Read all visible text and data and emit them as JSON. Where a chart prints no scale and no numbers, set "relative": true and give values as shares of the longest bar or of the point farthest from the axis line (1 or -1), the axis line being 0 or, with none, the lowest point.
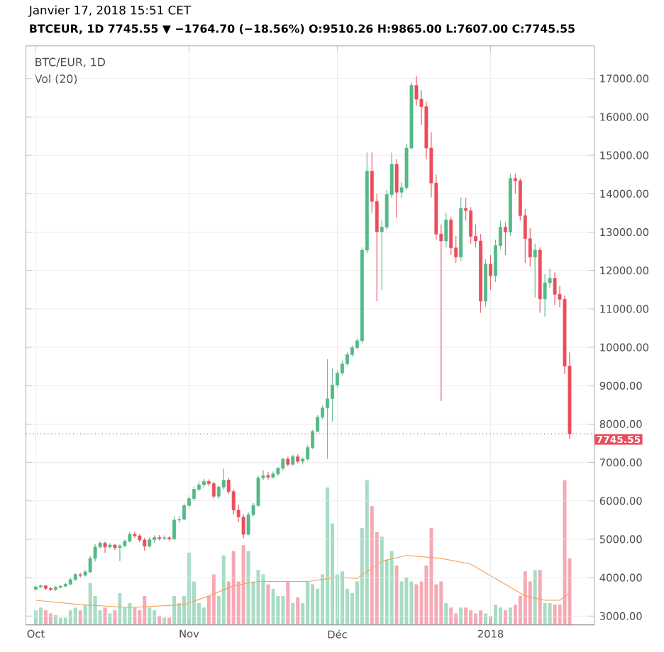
{
  "chart_data": [
    {
      "type": "candlestick",
      "title": "Janvier 17, 2018 15:51 CET",
      "subtitle": "BTCEUR, 1D 7745.55 ▼ −1764.70 (−18.56%) O:9510.26 H:9865.00 L:7607.00 C:7745.55",
      "annotations": [
        "BTC/EUR, 1D"
      ],
      "x": [
        "2017-10-01",
        "2017-10-02",
        "2017-10-03",
        "2017-10-04",
        "2017-10-05",
        "2017-10-06",
        "2017-10-07",
        "2017-10-08",
        "2017-10-09",
        "2017-10-10",
        "2017-10-11",
        "2017-10-12",
        "2017-10-13",
        "2017-10-14",
        "2017-10-15",
        "2017-10-16",
        "2017-10-17",
        "2017-10-18",
        "2017-10-19",
        "2017-10-20",
        "2017-10-21",
        "2017-10-22",
        "2017-10-23",
        "2017-10-24",
        "2017-10-25",
        "2017-10-26",
        "2017-10-27",
        "2017-10-28",
        "2017-10-29",
        "2017-10-30",
        "2017-10-31",
        "2017-11-01",
        "2017-11-02",
        "2017-11-03",
        "2017-11-04",
        "2017-11-05",
        "2017-11-06",
        "2017-11-07",
        "2017-11-08",
        "2017-11-09",
        "2017-11-10",
        "2017-11-11",
        "2017-11-12",
        "2017-11-13",
        "2017-11-14",
        "2017-11-15",
        "2017-11-16",
        "2017-11-17",
        "2017-11-18",
        "2017-11-19",
        "2017-11-20",
        "2017-11-21",
        "2017-11-22",
        "2017-11-23",
        "2017-11-24",
        "2017-11-25",
        "2017-11-26",
        "2017-11-27",
        "2017-11-28",
        "2017-11-29",
        "2017-11-30",
        "2017-12-01",
        "2017-12-02",
        "2017-12-03",
        "2017-12-04",
        "2017-12-05",
        "2017-12-06",
        "2017-12-07",
        "2017-12-08",
        "2017-12-09",
        "2017-12-10",
        "2017-12-11",
        "2017-12-12",
        "2017-12-13",
        "2017-12-14",
        "2017-12-15",
        "2017-12-16",
        "2017-12-17",
        "2017-12-18",
        "2017-12-19",
        "2017-12-20",
        "2017-12-21",
        "2017-12-22",
        "2017-12-23",
        "2017-12-24",
        "2017-12-25",
        "2017-12-26",
        "2017-12-27",
        "2017-12-28",
        "2017-12-29",
        "2017-12-30",
        "2017-12-31",
        "2018-01-01",
        "2018-01-02",
        "2018-01-03",
        "2018-01-04",
        "2018-01-05",
        "2018-01-06",
        "2018-01-07",
        "2018-01-08",
        "2018-01-09",
        "2018-01-10",
        "2018-01-11",
        "2018-01-12",
        "2018-01-13",
        "2018-01-14",
        "2018-01-15",
        "2018-01-16",
        "2018-01-17"
      ],
      "ohlc": [
        [
          3700,
          3790,
          3650,
          3760
        ],
        [
          3760,
          3820,
          3720,
          3790
        ],
        [
          3790,
          3810,
          3680,
          3720
        ],
        [
          3720,
          3760,
          3650,
          3690
        ],
        [
          3690,
          3780,
          3660,
          3750
        ],
        [
          3750,
          3800,
          3720,
          3780
        ],
        [
          3780,
          3860,
          3750,
          3830
        ],
        [
          3830,
          3990,
          3800,
          3950
        ],
        [
          3950,
          4120,
          3920,
          4080
        ],
        [
          4080,
          4130,
          4010,
          4060
        ],
        [
          4060,
          4200,
          4030,
          4150
        ],
        [
          4150,
          4560,
          4120,
          4500
        ],
        [
          4500,
          4870,
          4420,
          4800
        ],
        [
          4800,
          4950,
          4760,
          4900
        ],
        [
          4900,
          4940,
          4650,
          4800
        ],
        [
          4800,
          4900,
          4760,
          4850
        ],
        [
          4850,
          4880,
          4720,
          4780
        ],
        [
          4780,
          4870,
          4430,
          4830
        ],
        [
          4830,
          4990,
          4800,
          4950
        ],
        [
          4950,
          5180,
          4920,
          5130
        ],
        [
          5130,
          5200,
          5040,
          5090
        ],
        [
          5090,
          5130,
          4930,
          4980
        ],
        [
          4980,
          5040,
          4700,
          4820
        ],
        [
          4820,
          5050,
          4780,
          4990
        ],
        [
          4990,
          5100,
          4900,
          5050
        ],
        [
          5050,
          5110,
          4970,
          5020
        ],
        [
          5020,
          5100,
          4990,
          5040
        ],
        [
          5040,
          5080,
          4950,
          5010
        ],
        [
          5010,
          5600,
          4990,
          5500
        ],
        [
          5500,
          5600,
          5430,
          5520
        ],
        [
          5520,
          5930,
          5500,
          5880
        ],
        [
          5880,
          6150,
          5800,
          6060
        ],
        [
          6060,
          6380,
          6000,
          6300
        ],
        [
          6300,
          6520,
          6250,
          6420
        ],
        [
          6420,
          6580,
          6350,
          6510
        ],
        [
          6510,
          6560,
          6380,
          6450
        ],
        [
          6450,
          6500,
          6060,
          6120
        ],
        [
          6120,
          6400,
          6050,
          6360
        ],
        [
          6360,
          6840,
          6300,
          6540
        ],
        [
          6540,
          6600,
          6180,
          6240
        ],
        [
          6240,
          6300,
          5650,
          5760
        ],
        [
          5760,
          5900,
          5450,
          5580
        ],
        [
          5580,
          5650,
          5030,
          5130
        ],
        [
          5130,
          5700,
          5100,
          5640
        ],
        [
          5640,
          5950,
          5600,
          5880
        ],
        [
          5880,
          6650,
          5850,
          6600
        ],
        [
          6600,
          6800,
          6550,
          6660
        ],
        [
          6660,
          6750,
          6560,
          6620
        ],
        [
          6620,
          6760,
          6580,
          6700
        ],
        [
          6700,
          6880,
          6650,
          6850
        ],
        [
          6850,
          7120,
          6800,
          7090
        ],
        [
          7090,
          7150,
          6900,
          6950
        ],
        [
          6950,
          7200,
          6920,
          7150
        ],
        [
          7150,
          7220,
          6980,
          7030
        ],
        [
          7030,
          7130,
          6950,
          7090
        ],
        [
          7090,
          7450,
          7050,
          7390
        ],
        [
          7390,
          7850,
          7350,
          7810
        ],
        [
          7810,
          8230,
          7780,
          8180
        ],
        [
          8180,
          8480,
          8130,
          8420
        ],
        [
          8420,
          9690,
          7090,
          8660
        ],
        [
          8660,
          9450,
          8060,
          9020
        ],
        [
          9020,
          9400,
          8950,
          9330
        ],
        [
          9330,
          9650,
          9280,
          9570
        ],
        [
          9570,
          9880,
          9520,
          9810
        ],
        [
          9810,
          10050,
          9750,
          9990
        ],
        [
          9990,
          10230,
          9940,
          10170
        ],
        [
          10170,
          12600,
          10100,
          12530
        ],
        [
          12530,
          15070,
          12450,
          14590
        ],
        [
          14590,
          15070,
          13500,
          13800
        ],
        [
          13800,
          14000,
          11200,
          13010
        ],
        [
          13010,
          13300,
          11500,
          13130
        ],
        [
          13130,
          14100,
          13050,
          13980
        ],
        [
          13980,
          15070,
          13900,
          14770
        ],
        [
          14770,
          14900,
          13370,
          14040
        ],
        [
          14040,
          14300,
          13900,
          14160
        ],
        [
          14160,
          15300,
          14100,
          15190
        ],
        [
          15190,
          16900,
          15150,
          16820
        ],
        [
          16820,
          17060,
          16300,
          16460
        ],
        [
          16460,
          16700,
          15800,
          16270
        ],
        [
          16270,
          16400,
          14900,
          15190
        ],
        [
          15190,
          15600,
          13900,
          14280
        ],
        [
          14280,
          14500,
          12800,
          12950
        ],
        [
          12950,
          13200,
          8600,
          12770
        ],
        [
          12770,
          13500,
          12600,
          13320
        ],
        [
          13320,
          13400,
          12400,
          12590
        ],
        [
          12590,
          12900,
          12200,
          12350
        ],
        [
          12350,
          13900,
          12250,
          13620
        ],
        [
          13620,
          13900,
          13300,
          13560
        ],
        [
          13560,
          13650,
          12700,
          12890
        ],
        [
          12890,
          13200,
          12600,
          12770
        ],
        [
          12770,
          12950,
          10900,
          11200
        ],
        [
          11200,
          12300,
          11050,
          12170
        ],
        [
          12170,
          12400,
          11500,
          11860
        ],
        [
          11860,
          12800,
          11700,
          12650
        ],
        [
          12650,
          13300,
          12550,
          13130
        ],
        [
          13130,
          13250,
          12400,
          13010
        ],
        [
          13010,
          14520,
          12900,
          14400
        ],
        [
          14400,
          14520,
          14000,
          14340
        ],
        [
          14340,
          14400,
          13300,
          13430
        ],
        [
          13430,
          13600,
          12200,
          12830
        ],
        [
          12830,
          13100,
          12100,
          12350
        ],
        [
          12350,
          12700,
          11300,
          12530
        ],
        [
          12530,
          12600,
          10900,
          11260
        ],
        [
          11260,
          11900,
          10800,
          11680
        ],
        [
          11680,
          12050,
          11550,
          11800
        ],
        [
          11800,
          11950,
          11100,
          11380
        ],
        [
          11380,
          11600,
          11050,
          11250
        ],
        [
          11250,
          11350,
          9300,
          9510
        ],
        [
          9510.26,
          9865,
          7607,
          7745.55
        ]
      ],
      "colors": [
        "#53b987",
        "#53b987",
        "#eb4d5c",
        "#eb4d5c",
        "#53b987",
        "#53b987",
        "#53b987",
        "#53b987",
        "#53b987",
        "#eb4d5c",
        "#53b987",
        "#53b987",
        "#53b987",
        "#53b987",
        "#eb4d5c",
        "#53b987",
        "#eb4d5c",
        "#53b987",
        "#53b987",
        "#53b987",
        "#eb4d5c",
        "#eb4d5c",
        "#eb4d5c",
        "#53b987",
        "#53b987",
        "#eb4d5c",
        "#53b987",
        "#eb4d5c",
        "#53b987",
        "#53b987",
        "#53b987",
        "#53b987",
        "#53b987",
        "#53b987",
        "#53b987",
        "#eb4d5c",
        "#eb4d5c",
        "#53b987",
        "#53b987",
        "#eb4d5c",
        "#eb4d5c",
        "#eb4d5c",
        "#eb4d5c",
        "#53b987",
        "#53b987",
        "#53b987",
        "#53b987",
        "#eb4d5c",
        "#53b987",
        "#53b987",
        "#53b987",
        "#eb4d5c",
        "#53b987",
        "#eb4d5c",
        "#53b987",
        "#53b987",
        "#53b987",
        "#53b987",
        "#53b987",
        "#53b987",
        "#53b987",
        "#53b987",
        "#53b987",
        "#53b987",
        "#53b987",
        "#53b987",
        "#53b987",
        "#53b987",
        "#eb4d5c",
        "#eb4d5c",
        "#53b987",
        "#53b987",
        "#53b987",
        "#eb4d5c",
        "#53b987",
        "#53b987",
        "#53b987",
        "#eb4d5c",
        "#eb4d5c",
        "#eb4d5c",
        "#eb4d5c",
        "#eb4d5c",
        "#eb4d5c",
        "#53b987",
        "#eb4d5c",
        "#eb4d5c",
        "#53b987",
        "#eb4d5c",
        "#eb4d5c",
        "#eb4d5c",
        "#eb4d5c",
        "#53b987",
        "#eb4d5c",
        "#53b987",
        "#53b987",
        "#eb4d5c",
        "#53b987",
        "#eb4d5c",
        "#eb4d5c",
        "#eb4d5c",
        "#eb4d5c",
        "#53b987",
        "#eb4d5c",
        "#53b987",
        "#53b987",
        "#eb4d5c",
        "#eb4d5c",
        "#eb4d5c",
        "#eb4d5c"
      ],
      "xlim": [
        "2017-09-29",
        "2018-01-22"
      ],
      "ylim": [
        2770,
        17850
      ],
      "xticks": [
        {
          "value": "2017-10-01",
          "label": "Oct"
        },
        {
          "value": "2017-11-01",
          "label": "Nov"
        },
        {
          "value": "2017-12-01",
          "label": "Déc"
        },
        {
          "value": "2018-01-01",
          "label": "2018"
        }
      ],
      "yticks": [
        {
          "value": 3000,
          "label": "3000.00"
        },
        {
          "value": 4000,
          "label": "4000.00"
        },
        {
          "value": 5000,
          "label": "5000.00"
        },
        {
          "value": 6000,
          "label": "6000.00"
        },
        {
          "value": 7000,
          "label": "7000.00"
        },
        {
          "value": 8000,
          "label": "8000.00"
        },
        {
          "value": 9000,
          "label": "9000.00"
        },
        {
          "value": 10000,
          "label": "10000.00"
        },
        {
          "value": 11000,
          "label": "11000.00"
        },
        {
          "value": 12000,
          "label": "12000.00"
        },
        {
          "value": 13000,
          "label": "13000.00"
        },
        {
          "value": 14000,
          "label": "14000.00"
        },
        {
          "value": 15000,
          "label": "15000.00"
        },
        {
          "value": 16000,
          "label": "16000.00"
        },
        {
          "value": 17000,
          "label": "17000.00"
        }
      ],
      "grid": true,
      "ref_lines": [
        {
          "axis": "y",
          "value": 7745.55,
          "label": "7745.55",
          "color": "#eb4d5c",
          "line_style": "dotted"
        }
      ]
    },
    {
      "type": "bar",
      "relative": true,
      "annotations": [
        "Vol (20)"
      ],
      "xlim": [
        "2017-09-29",
        "2018-01-22"
      ],
      "x": [
        "2017-10-01",
        "2017-10-02",
        "2017-10-03",
        "2017-10-04",
        "2017-10-05",
        "2017-10-06",
        "2017-10-07",
        "2017-10-08",
        "2017-10-09",
        "2017-10-10",
        "2017-10-11",
        "2017-10-12",
        "2017-10-13",
        "2017-10-14",
        "2017-10-15",
        "2017-10-16",
        "2017-10-17",
        "2017-10-18",
        "2017-10-19",
        "2017-10-20",
        "2017-10-21",
        "2017-10-22",
        "2017-10-23",
        "2017-10-24",
        "2017-10-25",
        "2017-10-26",
        "2017-10-27",
        "2017-10-28",
        "2017-10-29",
        "2017-10-30",
        "2017-10-31",
        "2017-11-01",
        "2017-11-02",
        "2017-11-03",
        "2017-11-04",
        "2017-11-05",
        "2017-11-06",
        "2017-11-07",
        "2017-11-08",
        "2017-11-09",
        "2017-11-10",
        "2017-11-11",
        "2017-11-12",
        "2017-11-13",
        "2017-11-14",
        "2017-11-15",
        "2017-11-16",
        "2017-11-17",
        "2017-11-18",
        "2017-11-19",
        "2017-11-20",
        "2017-11-21",
        "2017-11-22",
        "2017-11-23",
        "2017-11-24",
        "2017-11-25",
        "2017-11-26",
        "2017-11-27",
        "2017-11-28",
        "2017-11-29",
        "2017-11-30",
        "2017-12-01",
        "2017-12-02",
        "2017-12-03",
        "2017-12-04",
        "2017-12-05",
        "2017-12-06",
        "2017-12-07",
        "2017-12-08",
        "2017-12-09",
        "2017-12-10",
        "2017-12-11",
        "2017-12-12",
        "2017-12-13",
        "2017-12-14",
        "2017-12-15",
        "2017-12-16",
        "2017-12-17",
        "2017-12-18",
        "2017-12-19",
        "2017-12-20",
        "2017-12-21",
        "2017-12-22",
        "2017-12-23",
        "2017-12-24",
        "2017-12-25",
        "2017-12-26",
        "2017-12-27",
        "2017-12-28",
        "2017-12-29",
        "2017-12-30",
        "2017-12-31",
        "2018-01-01",
        "2018-01-02",
        "2018-01-03",
        "2018-01-04",
        "2018-01-05",
        "2018-01-06",
        "2018-01-07",
        "2018-01-08",
        "2018-01-09",
        "2018-01-10",
        "2018-01-11",
        "2018-01-12",
        "2018-01-13",
        "2018-01-14",
        "2018-01-15",
        "2018-01-16",
        "2018-01-17"
      ],
      "series": [
        {
          "type": "bar",
          "values": [
            0.1,
            0.12,
            0.1,
            0.08,
            0.07,
            0.05,
            0.05,
            0.1,
            0.12,
            0.1,
            0.14,
            0.29,
            0.2,
            0.1,
            0.12,
            0.08,
            0.1,
            0.22,
            0.12,
            0.15,
            0.12,
            0.1,
            0.2,
            0.12,
            0.1,
            0.06,
            0.05,
            0.05,
            0.2,
            0.15,
            0.2,
            0.5,
            0.3,
            0.15,
            0.12,
            0.2,
            0.35,
            0.2,
            0.48,
            0.3,
            0.51,
            0.3,
            0.55,
            0.51,
            0.3,
            0.38,
            0.35,
            0.28,
            0.25,
            0.2,
            0.2,
            0.3,
            0.15,
            0.19,
            0.15,
            0.3,
            0.28,
            0.25,
            0.35,
            0.95,
            0.7,
            0.35,
            0.37,
            0.25,
            0.22,
            0.3,
            0.67,
            1.0,
            0.82,
            0.64,
            0.61,
            0.45,
            0.51,
            0.41,
            0.3,
            0.33,
            0.3,
            0.28,
            0.3,
            0.41,
            0.67,
            0.28,
            0.3,
            0.15,
            0.12,
            0.08,
            0.12,
            0.12,
            0.1,
            0.08,
            0.1,
            0.08,
            0.06,
            0.14,
            0.12,
            0.1,
            0.12,
            0.14,
            0.2,
            0.37,
            0.3,
            0.38,
            0.38,
            0.15,
            0.15,
            0.14,
            0.14,
            1.0,
            0.46
          ],
          "colors": [
            "#a6dcc4",
            "#a6dcc4",
            "#f6a9b4",
            "#f6a9b4",
            "#a6dcc4",
            "#a6dcc4",
            "#a6dcc4",
            "#a6dcc4",
            "#a6dcc4",
            "#f6a9b4",
            "#a6dcc4",
            "#a6dcc4",
            "#a6dcc4",
            "#a6dcc4",
            "#f6a9b4",
            "#a6dcc4",
            "#f6a9b4",
            "#a6dcc4",
            "#a6dcc4",
            "#a6dcc4",
            "#f6a9b4",
            "#f6a9b4",
            "#f6a9b4",
            "#a6dcc4",
            "#a6dcc4",
            "#f6a9b4",
            "#a6dcc4",
            "#f6a9b4",
            "#a6dcc4",
            "#a6dcc4",
            "#a6dcc4",
            "#a6dcc4",
            "#a6dcc4",
            "#a6dcc4",
            "#a6dcc4",
            "#f6a9b4",
            "#f6a9b4",
            "#a6dcc4",
            "#a6dcc4",
            "#f6a9b4",
            "#f6a9b4",
            "#f6a9b4",
            "#f6a9b4",
            "#a6dcc4",
            "#a6dcc4",
            "#a6dcc4",
            "#a6dcc4",
            "#f6a9b4",
            "#a6dcc4",
            "#a6dcc4",
            "#a6dcc4",
            "#f6a9b4",
            "#a6dcc4",
            "#f6a9b4",
            "#a6dcc4",
            "#a6dcc4",
            "#a6dcc4",
            "#a6dcc4",
            "#a6dcc4",
            "#a6dcc4",
            "#a6dcc4",
            "#a6dcc4",
            "#a6dcc4",
            "#a6dcc4",
            "#a6dcc4",
            "#a6dcc4",
            "#a6dcc4",
            "#a6dcc4",
            "#f6a9b4",
            "#f6a9b4",
            "#a6dcc4",
            "#a6dcc4",
            "#a6dcc4",
            "#f6a9b4",
            "#a6dcc4",
            "#a6dcc4",
            "#a6dcc4",
            "#f6a9b4",
            "#f6a9b4",
            "#f6a9b4",
            "#f6a9b4",
            "#f6a9b4",
            "#f6a9b4",
            "#a6dcc4",
            "#f6a9b4",
            "#f6a9b4",
            "#a6dcc4",
            "#f6a9b4",
            "#f6a9b4",
            "#f6a9b4",
            "#f6a9b4",
            "#a6dcc4",
            "#f6a9b4",
            "#a6dcc4",
            "#a6dcc4",
            "#f6a9b4",
            "#a6dcc4",
            "#f6a9b4",
            "#f6a9b4",
            "#f6a9b4",
            "#f6a9b4",
            "#a6dcc4",
            "#f6a9b4",
            "#a6dcc4",
            "#a6dcc4",
            "#f6a9b4",
            "#f6a9b4",
            "#f6a9b4",
            "#f6a9b4"
          ]
        },
        {
          "type": "line",
          "color": "#f5a25d",
          "x": [
            "2017-10-01",
            "2017-10-10",
            "2017-10-20",
            "2017-10-31",
            "2017-11-05",
            "2017-11-10",
            "2017-11-15",
            "2017-11-25",
            "2017-12-01",
            "2017-12-05",
            "2017-12-10",
            "2017-12-15",
            "2017-12-22",
            "2017-12-28",
            "2018-01-03",
            "2018-01-08",
            "2018-01-12",
            "2018-01-15",
            "2018-01-17"
          ],
          "values": [
            0.17,
            0.14,
            0.12,
            0.14,
            0.2,
            0.27,
            0.3,
            0.3,
            0.33,
            0.32,
            0.44,
            0.48,
            0.46,
            0.42,
            0.3,
            0.2,
            0.17,
            0.17,
            0.22
          ]
        }
      ]
    }
  ]
}
